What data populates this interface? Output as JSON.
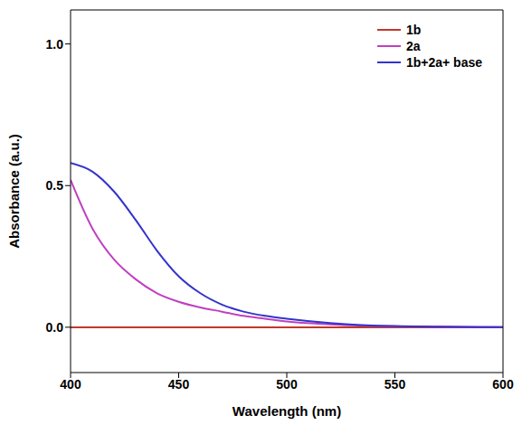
{
  "chart_data": {
    "type": "line",
    "x_label": "Wavelength (nm)",
    "y_label": "Absorbance (a.u.)",
    "x": [
      400,
      410,
      420,
      430,
      440,
      450,
      460,
      470,
      480,
      490,
      500,
      520,
      550,
      600
    ],
    "series": [
      {
        "name": "1b",
        "color": "#c0392b",
        "values": [
          0,
          0,
          0,
          0,
          0,
          0,
          0,
          0,
          0,
          0,
          0,
          0,
          0,
          0
        ]
      },
      {
        "name": "2a",
        "color": "#c040c0",
        "values": [
          0.52,
          0.35,
          0.24,
          0.17,
          0.12,
          0.09,
          0.07,
          0.055,
          0.04,
          0.03,
          0.02,
          0.01,
          0.003,
          0
        ]
      },
      {
        "name": "1b+2a+ base",
        "color": "#3333cc",
        "values": [
          0.58,
          0.55,
          0.48,
          0.38,
          0.27,
          0.18,
          0.12,
          0.08,
          0.055,
          0.04,
          0.03,
          0.015,
          0.004,
          0
        ]
      }
    ],
    "xlim": [
      400,
      600
    ],
    "ylim": [
      -0.16,
      1.12
    ],
    "xticks": [
      400,
      450,
      500,
      550,
      600
    ],
    "yticks": [
      {
        "value": 0,
        "label": "0.0"
      },
      {
        "value": 0.5,
        "label": "0.5"
      },
      {
        "value": 1,
        "label": "1.0"
      }
    ],
    "legend": "upper right"
  }
}
